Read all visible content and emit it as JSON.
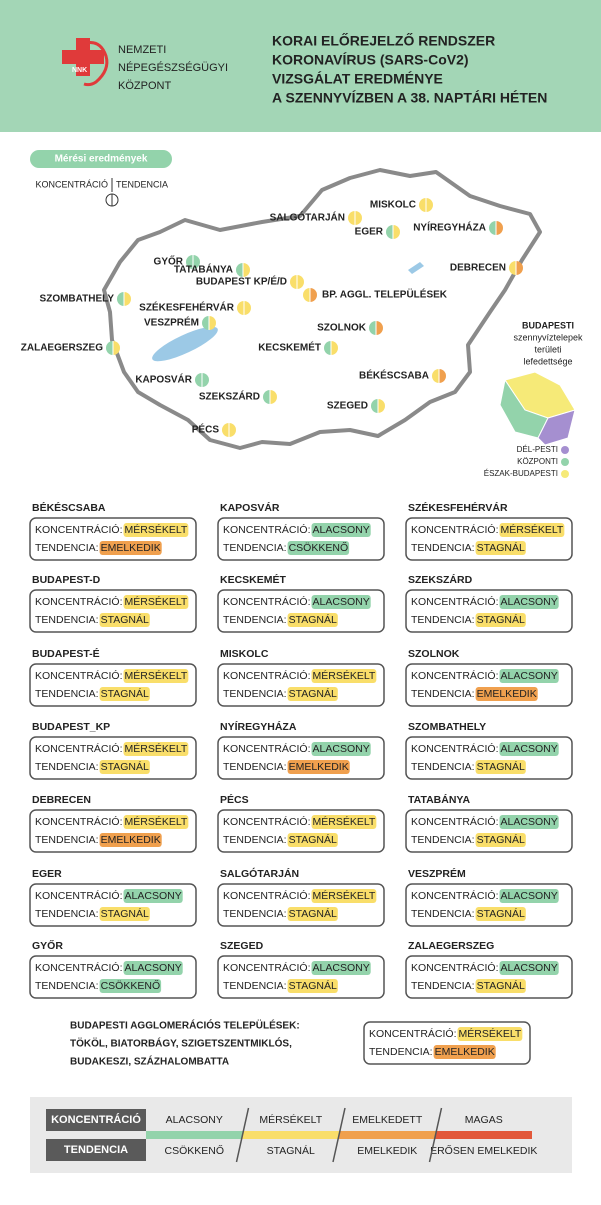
{
  "header": {
    "logo": "NNK",
    "org_lines": [
      "NEMZETI",
      "NÉPEGÉSZSÉGÜGYI",
      "KÖZPONT"
    ],
    "title_lines": [
      "KORAI ELŐREJELZŐ RENDSZER",
      "KORONAVÍRUS (SARS-CoV2)",
      "VIZSGÁLAT EREDMÉNYE",
      "A SZENNYVÍZBEN A 38. NAPTÁRI HÉTEN"
    ]
  },
  "palette": {
    "ALACSONY": "#93d3ab",
    "MÉRSÉKELT": "#f9de6a",
    "CSÖKKENŐ": "#93d3ab",
    "STAGNÁL": "#f9de6a",
    "EMELKEDIK": "#f0a04e"
  },
  "map": {
    "badge": "Mérési eredmények",
    "legend_conc": "KONCENTRÁCIÓ",
    "legend_tend": "TENDENCIA",
    "cities": [
      {
        "label": "MISKOLC",
        "conc": "MÉRSÉKELT",
        "tend": "STAGNÁL"
      },
      {
        "label": "SALGÓTARJÁN",
        "conc": "MÉRSÉKELT",
        "tend": "STAGNÁL"
      },
      {
        "label": "EGER",
        "conc": "ALACSONY",
        "tend": "STAGNÁL"
      },
      {
        "label": "NYÍREGYHÁZA",
        "conc": "ALACSONY",
        "tend": "EMELKEDIK"
      },
      {
        "label": "DEBRECEN",
        "conc": "MÉRSÉKELT",
        "tend": "EMELKEDIK"
      },
      {
        "label": "GYŐR",
        "conc": "ALACSONY",
        "tend": "CSÖKKENŐ"
      },
      {
        "label": "TATABÁNYA",
        "conc": "ALACSONY",
        "tend": "STAGNÁL"
      },
      {
        "label": "BUDAPEST KP/É/D",
        "conc": "MÉRSÉKELT",
        "tend": "STAGNÁL"
      },
      {
        "label": "BP. AGGL. TELEPÜLÉSEK",
        "conc": "MÉRSÉKELT",
        "tend": "EMELKEDIK"
      },
      {
        "label": "SZOMBATHELY",
        "conc": "ALACSONY",
        "tend": "STAGNÁL"
      },
      {
        "label": "SZÉKESFEHÉRVÁR",
        "conc": "MÉRSÉKELT",
        "tend": "STAGNÁL"
      },
      {
        "label": "VESZPRÉM",
        "conc": "ALACSONY",
        "tend": "STAGNÁL"
      },
      {
        "label": "SZOLNOK",
        "conc": "ALACSONY",
        "tend": "EMELKEDIK"
      },
      {
        "label": "ZALAEGERSZEG",
        "conc": "ALACSONY",
        "tend": "STAGNÁL"
      },
      {
        "label": "KECSKEMÉT",
        "conc": "ALACSONY",
        "tend": "STAGNÁL"
      },
      {
        "label": "BÉKÉSCSABA",
        "conc": "MÉRSÉKELT",
        "tend": "EMELKEDIK"
      },
      {
        "label": "KAPOSVÁR",
        "conc": "ALACSONY",
        "tend": "CSÖKKENŐ"
      },
      {
        "label": "SZEKSZÁRD",
        "conc": "ALACSONY",
        "tend": "STAGNÁL"
      },
      {
        "label": "SZEGED",
        "conc": "ALACSONY",
        "tend": "STAGNÁL"
      },
      {
        "label": "PÉCS",
        "conc": "MÉRSÉKELT",
        "tend": "STAGNÁL"
      }
    ],
    "inset": {
      "title_lines": [
        "BUDAPESTI",
        "szennyvíztelepek",
        "területi",
        "lefedettsége"
      ],
      "legend": [
        {
          "name": "DÉL-PESTI",
          "color": "#a58fd0"
        },
        {
          "name": "KÖZPONTI",
          "color": "#93d3ab"
        },
        {
          "name": "ÉSZAK-BUDAPESTI",
          "color": "#f6ea78"
        }
      ]
    }
  },
  "cards": {
    "conc_label": "KONCENTRÁCIÓ:",
    "tend_label": "TENDENCIA:",
    "items": [
      {
        "city": "BÉKÉSCSABA",
        "conc": "MÉRSÉKELT",
        "tend": "EMELKEDIK"
      },
      {
        "city": "BUDAPEST-D",
        "conc": "MÉRSÉKELT",
        "tend": "STAGNÁL"
      },
      {
        "city": "BUDAPEST-É",
        "conc": "MÉRSÉKELT",
        "tend": "STAGNÁL"
      },
      {
        "city": "BUDAPEST_KP",
        "conc": "MÉRSÉKELT",
        "tend": "STAGNÁL"
      },
      {
        "city": "DEBRECEN",
        "conc": "MÉRSÉKELT",
        "tend": "EMELKEDIK"
      },
      {
        "city": "EGER",
        "conc": "ALACSONY",
        "tend": "STAGNÁL"
      },
      {
        "city": "GYŐR",
        "conc": "ALACSONY",
        "tend": "CSÖKKENŐ"
      },
      {
        "city": "KAPOSVÁR",
        "conc": "ALACSONY",
        "tend": "CSÖKKENŐ"
      },
      {
        "city": "KECSKEMÉT",
        "conc": "ALACSONY",
        "tend": "STAGNÁL"
      },
      {
        "city": "MISKOLC",
        "conc": "MÉRSÉKELT",
        "tend": "STAGNÁL"
      },
      {
        "city": "NYÍREGYHÁZA",
        "conc": "ALACSONY",
        "tend": "EMELKEDIK"
      },
      {
        "city": "PÉCS",
        "conc": "MÉRSÉKELT",
        "tend": "STAGNÁL"
      },
      {
        "city": "SALGÓTARJÁN",
        "conc": "MÉRSÉKELT",
        "tend": "STAGNÁL"
      },
      {
        "city": "SZEGED",
        "conc": "ALACSONY",
        "tend": "STAGNÁL"
      },
      {
        "city": "SZÉKESFEHÉRVÁR",
        "conc": "MÉRSÉKELT",
        "tend": "STAGNÁL"
      },
      {
        "city": "SZEKSZÁRD",
        "conc": "ALACSONY",
        "tend": "STAGNÁL"
      },
      {
        "city": "SZOLNOK",
        "conc": "ALACSONY",
        "tend": "EMELKEDIK"
      },
      {
        "city": "SZOMBATHELY",
        "conc": "ALACSONY",
        "tend": "STAGNÁL"
      },
      {
        "city": "TATABÁNYA",
        "conc": "ALACSONY",
        "tend": "STAGNÁL"
      },
      {
        "city": "VESZPRÉM",
        "conc": "ALACSONY",
        "tend": "STAGNÁL"
      },
      {
        "city": "ZALAEGERSZEG",
        "conc": "ALACSONY",
        "tend": "STAGNÁL"
      }
    ]
  },
  "agglo": {
    "title_lines": [
      "BUDAPESTI AGGLOMERÁCIÓS TELEPÜLÉSEK:",
      "TÖKÖL, BIATORBÁGY, SZIGETSZENTMIKLÓS,",
      "BUDAKESZI, SZÁZHALOMBATTA"
    ],
    "conc": "MÉRSÉKELT",
    "tend": "EMELKEDIK"
  },
  "scale": {
    "conc_title": "KONCENTRÁCIÓ",
    "tend_title": "TENDENCIA",
    "segments": [
      {
        "conc": "ALACSONY",
        "tend": "CSÖKKENŐ",
        "color": "#93d3ab"
      },
      {
        "conc": "MÉRSÉKELT",
        "tend": "STAGNÁL",
        "color": "#f9de6a"
      },
      {
        "conc": "EMELKEDETT",
        "tend": "EMELKEDIK",
        "color": "#f0a04e"
      },
      {
        "conc": "MAGAS",
        "tend": "ERŐSEN EMELKEDIK",
        "color": "#e2583a"
      }
    ]
  }
}
